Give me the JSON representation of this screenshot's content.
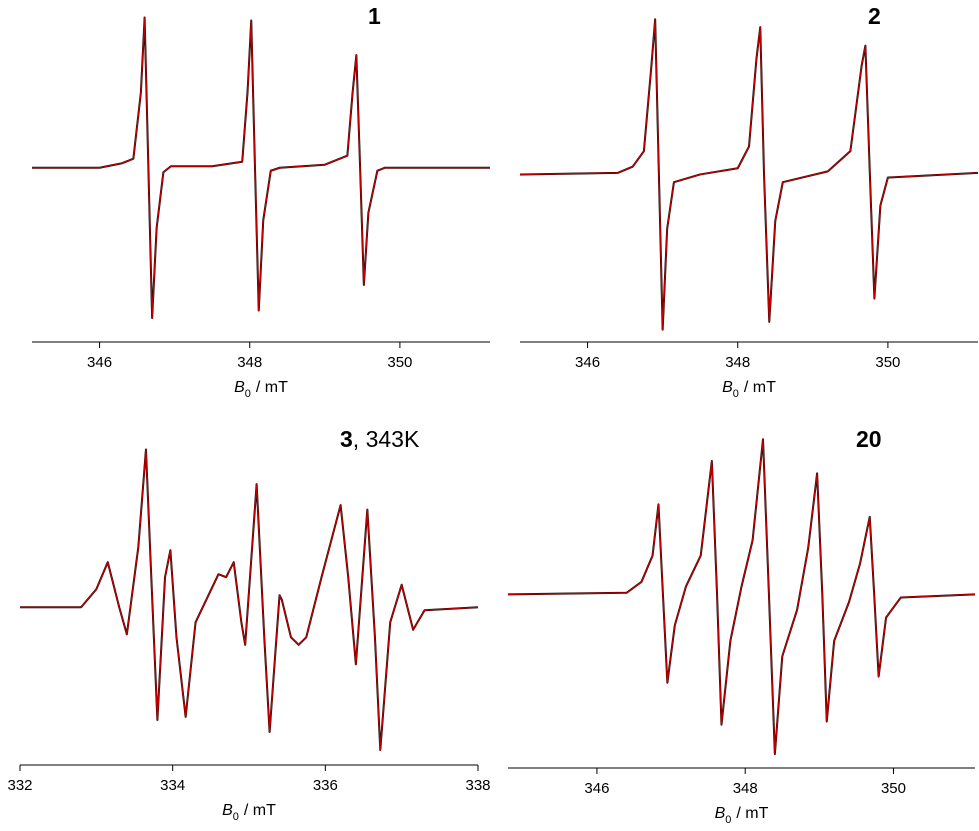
{
  "chart_data": [
    {
      "type": "line",
      "title": "1",
      "x": [
        345.1,
        346.0,
        346.3,
        346.45,
        346.55,
        346.6,
        346.65,
        346.7,
        346.76,
        346.85,
        346.95,
        347.5,
        347.9,
        347.97,
        348.02,
        348.07,
        348.12,
        348.18,
        348.28,
        348.4,
        349.0,
        349.3,
        349.37,
        349.42,
        349.47,
        349.52,
        349.58,
        349.7,
        349.8,
        351.2
      ],
      "series": [
        {
          "color": "#000000",
          "values": [
            0,
            0,
            0.03,
            0.06,
            0.5,
            1.0,
            0.0,
            -1.0,
            -0.4,
            -0.03,
            0.01,
            0.01,
            0.04,
            0.5,
            0.98,
            0.0,
            -0.95,
            -0.35,
            -0.02,
            0.0,
            0.02,
            0.08,
            0.5,
            0.75,
            0.0,
            -0.78,
            -0.3,
            -0.02,
            0.0,
            0
          ]
        },
        {
          "color": "#c00000",
          "values": [
            0,
            0,
            0.03,
            0.06,
            0.5,
            1.0,
            0.0,
            -1.0,
            -0.4,
            -0.03,
            0.01,
            0.01,
            0.04,
            0.5,
            0.98,
            0.0,
            -0.95,
            -0.35,
            -0.02,
            0.0,
            0.02,
            0.08,
            0.5,
            0.75,
            0.0,
            -0.78,
            -0.3,
            -0.02,
            0.0,
            0
          ]
        }
      ],
      "xlim": [
        345.1,
        351.2
      ],
      "xticks": [
        346,
        348,
        350
      ],
      "ylim": [
        -1.16,
        1.05
      ],
      "xlabel_symbol": "B",
      "xlabel_subscript": "0",
      "xlabel_rest": "/ mT"
    },
    {
      "type": "line",
      "title": "2",
      "x": [
        345.1,
        346.4,
        346.6,
        346.75,
        346.85,
        346.9,
        346.95,
        347.0,
        347.06,
        347.15,
        347.5,
        348.0,
        348.15,
        348.25,
        348.3,
        348.35,
        348.42,
        348.5,
        348.6,
        349.2,
        349.5,
        349.65,
        349.7,
        349.76,
        349.82,
        349.9,
        350.0,
        351.2
      ],
      "series": [
        {
          "color": "#000000",
          "values": [
            0,
            0.01,
            0.05,
            0.15,
            0.7,
            1.0,
            0.0,
            -1.0,
            -0.35,
            -0.05,
            0.0,
            0.04,
            0.18,
            0.75,
            0.95,
            0.0,
            -0.95,
            -0.3,
            -0.05,
            0.02,
            0.15,
            0.7,
            0.83,
            0.0,
            -0.8,
            -0.2,
            -0.02,
            0.01
          ]
        },
        {
          "color": "#c00000",
          "values": [
            0,
            0.01,
            0.05,
            0.15,
            0.7,
            1.0,
            0.0,
            -1.0,
            -0.35,
            -0.05,
            0.0,
            0.04,
            0.18,
            0.75,
            0.95,
            0.0,
            -0.95,
            -0.3,
            -0.05,
            0.02,
            0.15,
            0.7,
            0.83,
            0.0,
            -0.8,
            -0.2,
            -0.02,
            0.01
          ]
        }
      ],
      "xlim": [
        345.1,
        351.2
      ],
      "xticks": [
        346,
        348,
        350
      ],
      "ylim": [
        -1.08,
        1.06
      ],
      "xlabel_symbol": "B",
      "xlabel_subscript": "0",
      "xlabel_rest": "/ mT"
    },
    {
      "type": "line",
      "title": "3",
      "title_suffix": ", 343K",
      "x": [
        332.0,
        332.8,
        333.0,
        333.15,
        333.3,
        333.4,
        333.55,
        333.65,
        333.72,
        333.8,
        333.9,
        333.97,
        334.05,
        334.17,
        334.3,
        334.6,
        334.7,
        334.8,
        334.9,
        334.95,
        335.1,
        335.2,
        335.27,
        335.4,
        335.43,
        335.55,
        335.65,
        335.75,
        335.95,
        336.2,
        336.3,
        336.4,
        336.55,
        336.65,
        336.72,
        336.85,
        337.0,
        337.15,
        337.3,
        338.0
      ],
      "series": [
        {
          "color": "#000000",
          "values": [
            0,
            0.0,
            0.12,
            0.3,
            0.0,
            -0.18,
            0.4,
            1.05,
            0.2,
            -0.75,
            0.2,
            0.38,
            -0.2,
            -0.73,
            -0.1,
            0.22,
            0.2,
            0.3,
            -0.1,
            -0.25,
            0.82,
            -0.2,
            -0.83,
            0.08,
            0.05,
            -0.2,
            -0.25,
            -0.2,
            0.2,
            0.68,
            0.2,
            -0.38,
            0.65,
            -0.2,
            -0.95,
            -0.1,
            0.15,
            -0.15,
            -0.02,
            0
          ]
        },
        {
          "color": "#c00000",
          "values": [
            0,
            0.0,
            0.12,
            0.3,
            0.0,
            -0.18,
            0.4,
            1.05,
            0.2,
            -0.75,
            0.2,
            0.38,
            -0.2,
            -0.73,
            -0.1,
            0.22,
            0.2,
            0.3,
            -0.1,
            -0.25,
            0.82,
            -0.2,
            -0.83,
            0.08,
            0.05,
            -0.2,
            -0.25,
            -0.2,
            0.2,
            0.68,
            0.2,
            -0.38,
            0.65,
            -0.2,
            -0.95,
            -0.1,
            0.15,
            -0.15,
            -0.02,
            0
          ]
        }
      ],
      "xlim": [
        332,
        338
      ],
      "xticks": [
        332,
        334,
        336,
        338
      ],
      "ylim": [
        -1.05,
        1.18
      ],
      "xlabel_symbol": "B",
      "xlabel_subscript": "0",
      "xlabel_rest": "/ mT"
    },
    {
      "type": "line",
      "title": "20",
      "x": [
        344.8,
        346.4,
        346.6,
        346.75,
        346.83,
        346.89,
        346.95,
        347.05,
        347.2,
        347.4,
        347.55,
        347.62,
        347.68,
        347.8,
        347.95,
        348.1,
        348.24,
        348.32,
        348.4,
        348.5,
        348.7,
        348.85,
        348.97,
        349.04,
        349.1,
        349.2,
        349.4,
        349.55,
        349.68,
        349.74,
        349.8,
        349.9,
        350.1,
        351.1
      ],
      "series": [
        {
          "color": "#000000",
          "values": [
            0,
            0.01,
            0.08,
            0.25,
            0.58,
            0.0,
            -0.57,
            -0.2,
            0.05,
            0.25,
            0.86,
            0.0,
            -0.84,
            -0.3,
            0.05,
            0.35,
            1.0,
            0.0,
            -1.03,
            -0.4,
            -0.1,
            0.3,
            0.78,
            0.0,
            -0.82,
            -0.3,
            -0.05,
            0.2,
            0.5,
            0.0,
            -0.53,
            -0.15,
            -0.02,
            0
          ]
        },
        {
          "color": "#c00000",
          "values": [
            0,
            0.01,
            0.08,
            0.25,
            0.58,
            0.0,
            -0.57,
            -0.2,
            0.05,
            0.25,
            0.86,
            0.0,
            -0.84,
            -0.3,
            0.05,
            0.35,
            1.0,
            0.0,
            -1.03,
            -0.4,
            -0.1,
            0.3,
            0.78,
            0.0,
            -0.82,
            -0.3,
            -0.05,
            0.2,
            0.5,
            0.0,
            -0.53,
            -0.15,
            -0.02,
            0
          ]
        }
      ],
      "xlim": [
        344.8,
        351.1
      ],
      "xticks": [
        346,
        348,
        350
      ],
      "ylim": [
        -1.12,
        1.06
      ],
      "xlabel_symbol": "B",
      "xlabel_subscript": "0",
      "xlabel_rest": "/ mT"
    }
  ]
}
